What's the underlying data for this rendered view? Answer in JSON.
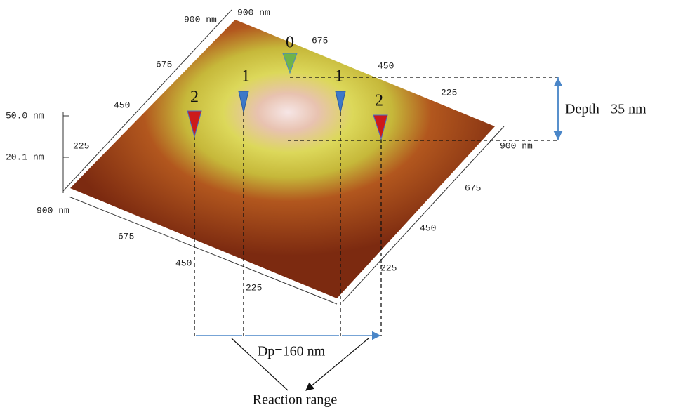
{
  "axis_labels": [
    "900 nm",
    "900 nm",
    "675",
    "450",
    "225",
    "675",
    "450",
    "225",
    "900 nm",
    "675",
    "450",
    "225",
    "900 nm",
    "675",
    "450",
    "225"
  ],
  "z_axis": [
    "50.0 nm",
    "20.1 nm"
  ],
  "markers": [
    "0",
    "1",
    "1",
    "2",
    "2"
  ],
  "annotations": {
    "depth": "Depth =35 nm",
    "diameter": "Dp=160 nm",
    "reaction": "Reaction range"
  }
}
